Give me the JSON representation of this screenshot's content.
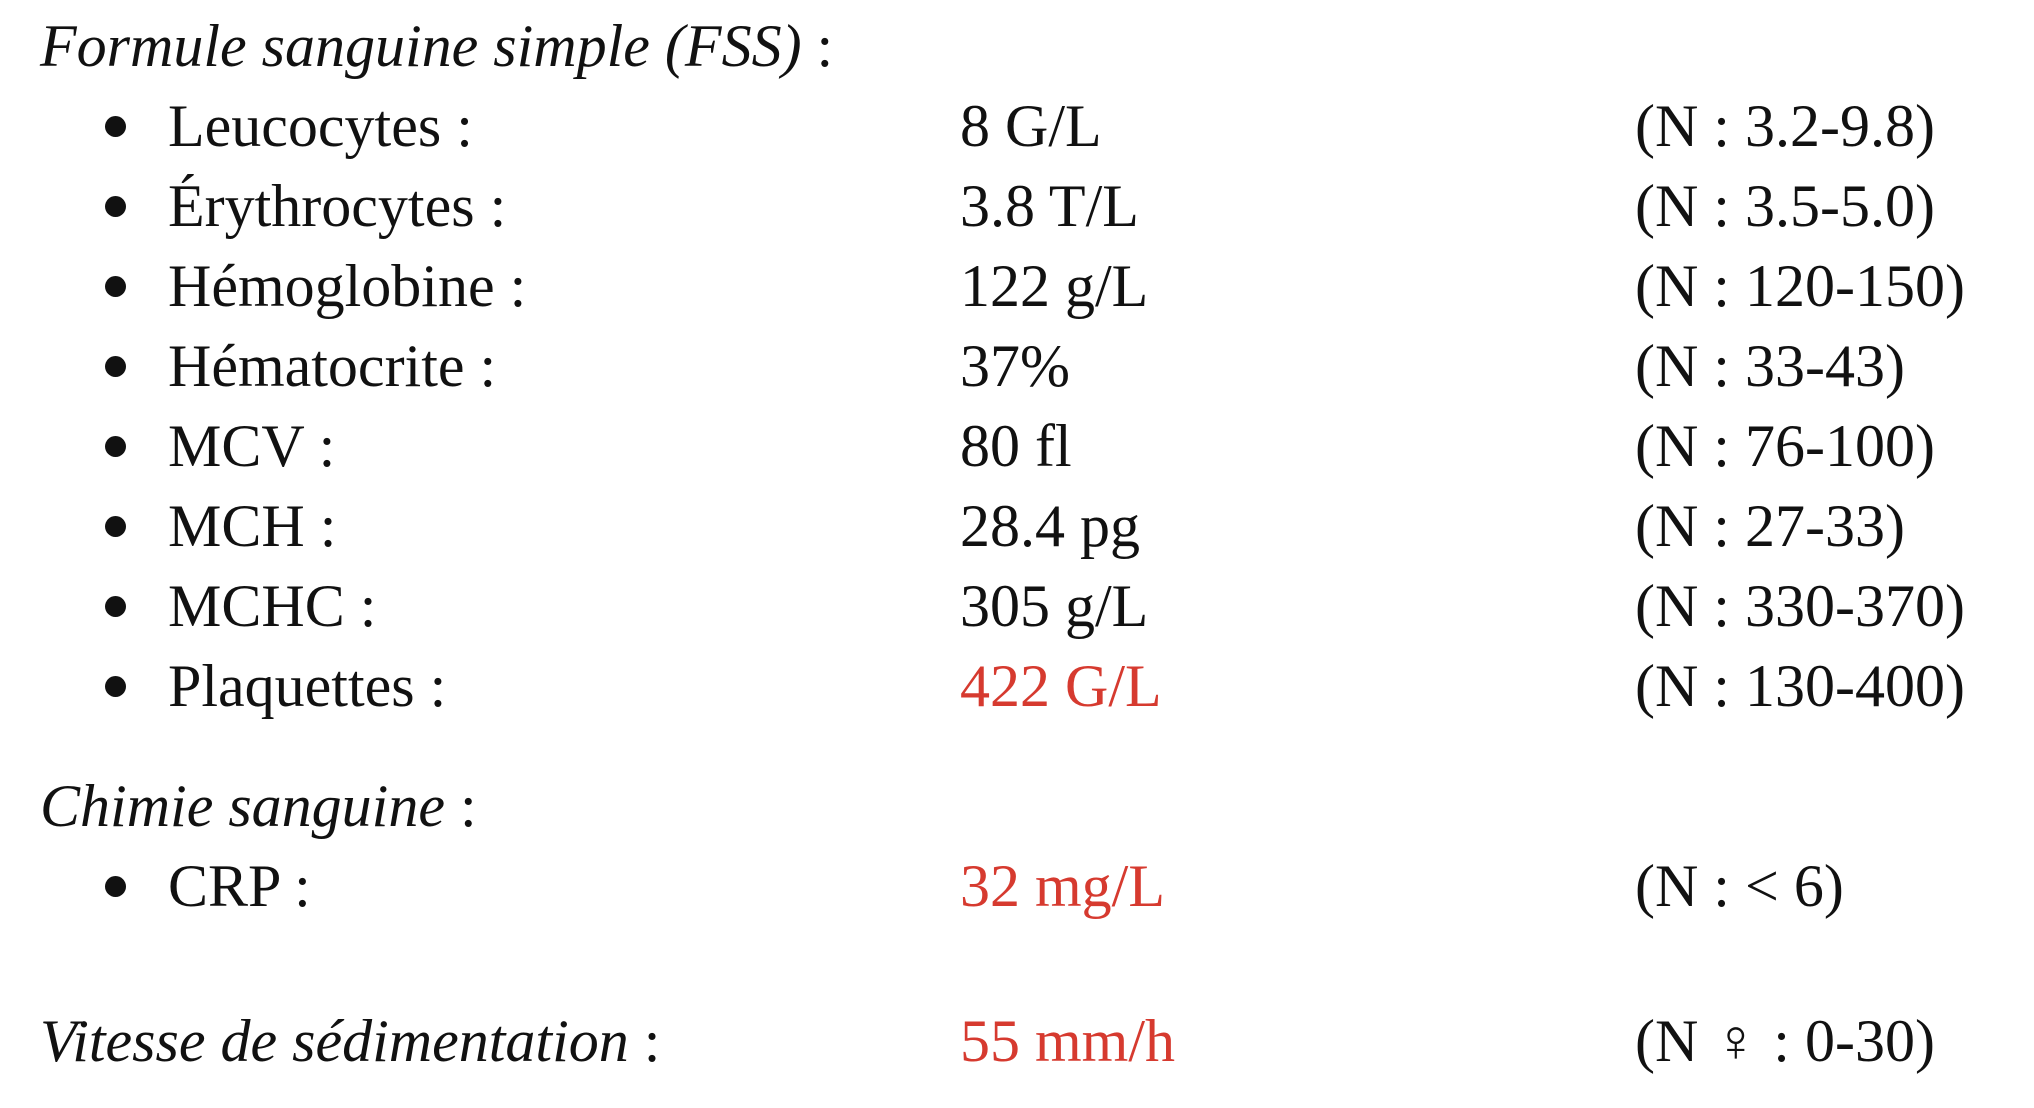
{
  "fss": {
    "title": "Formule sanguine simple (FSS)",
    "title_suffix": " :",
    "items": [
      {
        "label": "Leucocytes :",
        "value": "8 G/L",
        "normal": "(N : 3.2-9.8)"
      },
      {
        "label": "Érythrocytes :",
        "value": "3.8 T/L",
        "normal": "(N : 3.5-5.0)"
      },
      {
        "label": "Hémoglobine :",
        "value": "122 g/L",
        "normal": "(N : 120-150)"
      },
      {
        "label": "Hématocrite :",
        "value": "37%",
        "normal": "(N : 33-43)"
      },
      {
        "label": "MCV :",
        "value": "80 fl",
        "normal": "(N : 76-100)"
      },
      {
        "label": "MCH :",
        "value": "28.4 pg",
        "normal": "(N : 27-33)"
      },
      {
        "label": "MCHC :",
        "value": "305 g/L",
        "normal": "(N : 330-370)"
      },
      {
        "label": "Plaquettes :",
        "value": "422 G/L",
        "normal": "(N : 130-400)"
      }
    ]
  },
  "chimie": {
    "title": "Chimie sanguine",
    "title_suffix": " :",
    "items": [
      {
        "label": "CRP :",
        "value": "32 mg/L",
        "normal": "(N : < 6)"
      }
    ]
  },
  "vs": {
    "title": "Vitesse de sédimentation",
    "title_suffix": " :",
    "value": "55 mm/h",
    "normal": "(N ♀ : 0-30)"
  },
  "colors": {
    "text": "#111111",
    "abnormal": "#d63a2f"
  }
}
